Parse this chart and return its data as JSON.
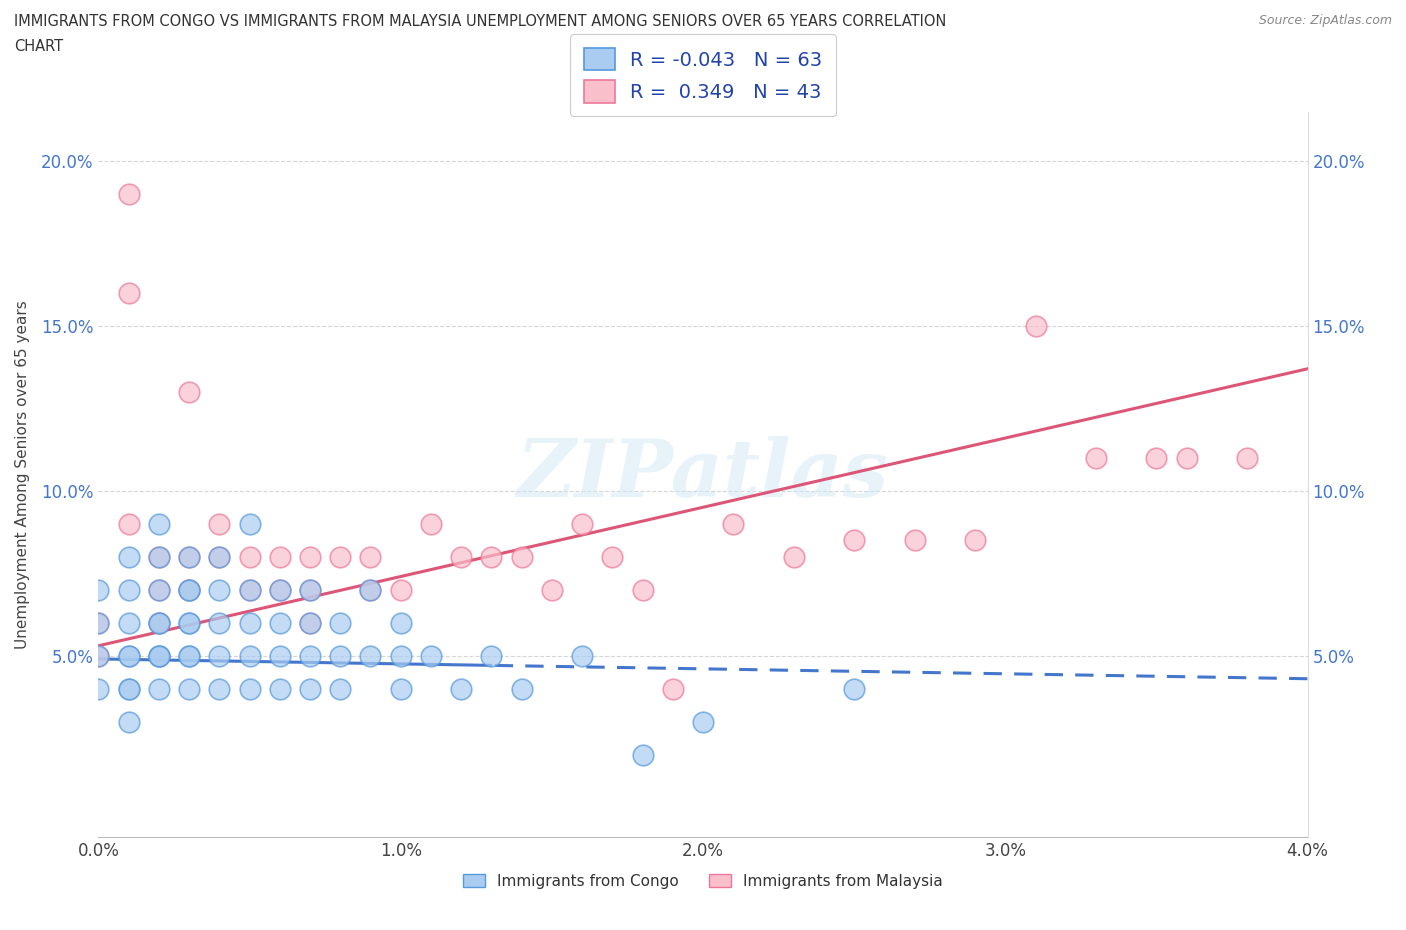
{
  "title": "IMMIGRANTS FROM CONGO VS IMMIGRANTS FROM MALAYSIA UNEMPLOYMENT AMONG SENIORS OVER 65 YEARS CORRELATION\nCHART",
  "source_text": "Source: ZipAtlas.com",
  "ylabel": "Unemployment Among Seniors over 65 years",
  "xlim": [
    0.0,
    0.04
  ],
  "ylim": [
    -0.005,
    0.215
  ],
  "xtick_labels": [
    "0.0%",
    "1.0%",
    "2.0%",
    "3.0%",
    "4.0%"
  ],
  "xtick_vals": [
    0.0,
    0.01,
    0.02,
    0.03,
    0.04
  ],
  "ytick_labels": [
    "5.0%",
    "10.0%",
    "15.0%",
    "20.0%"
  ],
  "ytick_vals": [
    0.05,
    0.1,
    0.15,
    0.2
  ],
  "congo_fill_color": "#aaccf0",
  "congo_edge_color": "#5599dd",
  "malaysia_fill_color": "#f9c0cc",
  "malaysia_edge_color": "#ee7799",
  "congo_line_color": "#4477cc",
  "malaysia_line_color": "#dd5577",
  "r_congo": -0.043,
  "n_congo": 63,
  "r_malaysia": 0.349,
  "n_malaysia": 43,
  "watermark": "ZIPatlas",
  "legend_blue_color": "#2244aa",
  "congo_scatter_x": [
    0.0,
    0.0,
    0.0,
    0.0,
    0.001,
    0.001,
    0.001,
    0.001,
    0.001,
    0.001,
    0.001,
    0.001,
    0.002,
    0.002,
    0.002,
    0.002,
    0.002,
    0.002,
    0.002,
    0.002,
    0.002,
    0.003,
    0.003,
    0.003,
    0.003,
    0.003,
    0.003,
    0.003,
    0.003,
    0.004,
    0.004,
    0.004,
    0.004,
    0.004,
    0.005,
    0.005,
    0.005,
    0.005,
    0.005,
    0.006,
    0.006,
    0.006,
    0.006,
    0.007,
    0.007,
    0.007,
    0.007,
    0.008,
    0.008,
    0.008,
    0.009,
    0.009,
    0.01,
    0.01,
    0.01,
    0.011,
    0.012,
    0.013,
    0.014,
    0.016,
    0.018,
    0.02,
    0.025
  ],
  "congo_scatter_y": [
    0.05,
    0.04,
    0.06,
    0.07,
    0.04,
    0.05,
    0.06,
    0.07,
    0.05,
    0.04,
    0.08,
    0.03,
    0.05,
    0.06,
    0.07,
    0.08,
    0.06,
    0.05,
    0.04,
    0.09,
    0.05,
    0.05,
    0.06,
    0.07,
    0.08,
    0.06,
    0.05,
    0.04,
    0.07,
    0.06,
    0.07,
    0.05,
    0.04,
    0.08,
    0.06,
    0.05,
    0.07,
    0.04,
    0.09,
    0.06,
    0.05,
    0.07,
    0.04,
    0.05,
    0.06,
    0.04,
    0.07,
    0.05,
    0.06,
    0.04,
    0.07,
    0.05,
    0.05,
    0.04,
    0.06,
    0.05,
    0.04,
    0.05,
    0.04,
    0.05,
    0.02,
    0.03,
    0.04
  ],
  "malaysia_scatter_x": [
    0.0,
    0.0,
    0.001,
    0.001,
    0.001,
    0.002,
    0.002,
    0.002,
    0.003,
    0.003,
    0.003,
    0.004,
    0.004,
    0.005,
    0.005,
    0.006,
    0.006,
    0.007,
    0.007,
    0.007,
    0.008,
    0.009,
    0.009,
    0.01,
    0.011,
    0.012,
    0.013,
    0.014,
    0.015,
    0.016,
    0.017,
    0.018,
    0.019,
    0.021,
    0.023,
    0.025,
    0.027,
    0.029,
    0.031,
    0.033,
    0.035,
    0.036,
    0.038
  ],
  "malaysia_scatter_y": [
    0.06,
    0.05,
    0.19,
    0.16,
    0.09,
    0.08,
    0.07,
    0.06,
    0.13,
    0.08,
    0.07,
    0.09,
    0.08,
    0.08,
    0.07,
    0.08,
    0.07,
    0.06,
    0.08,
    0.07,
    0.08,
    0.07,
    0.08,
    0.07,
    0.09,
    0.08,
    0.08,
    0.08,
    0.07,
    0.09,
    0.08,
    0.07,
    0.04,
    0.09,
    0.08,
    0.085,
    0.085,
    0.085,
    0.15,
    0.11,
    0.11,
    0.11,
    0.11
  ],
  "congo_line_intercept": 0.049,
  "congo_line_slope": -0.15,
  "malaysia_line_intercept": 0.053,
  "malaysia_line_slope": 2.1
}
